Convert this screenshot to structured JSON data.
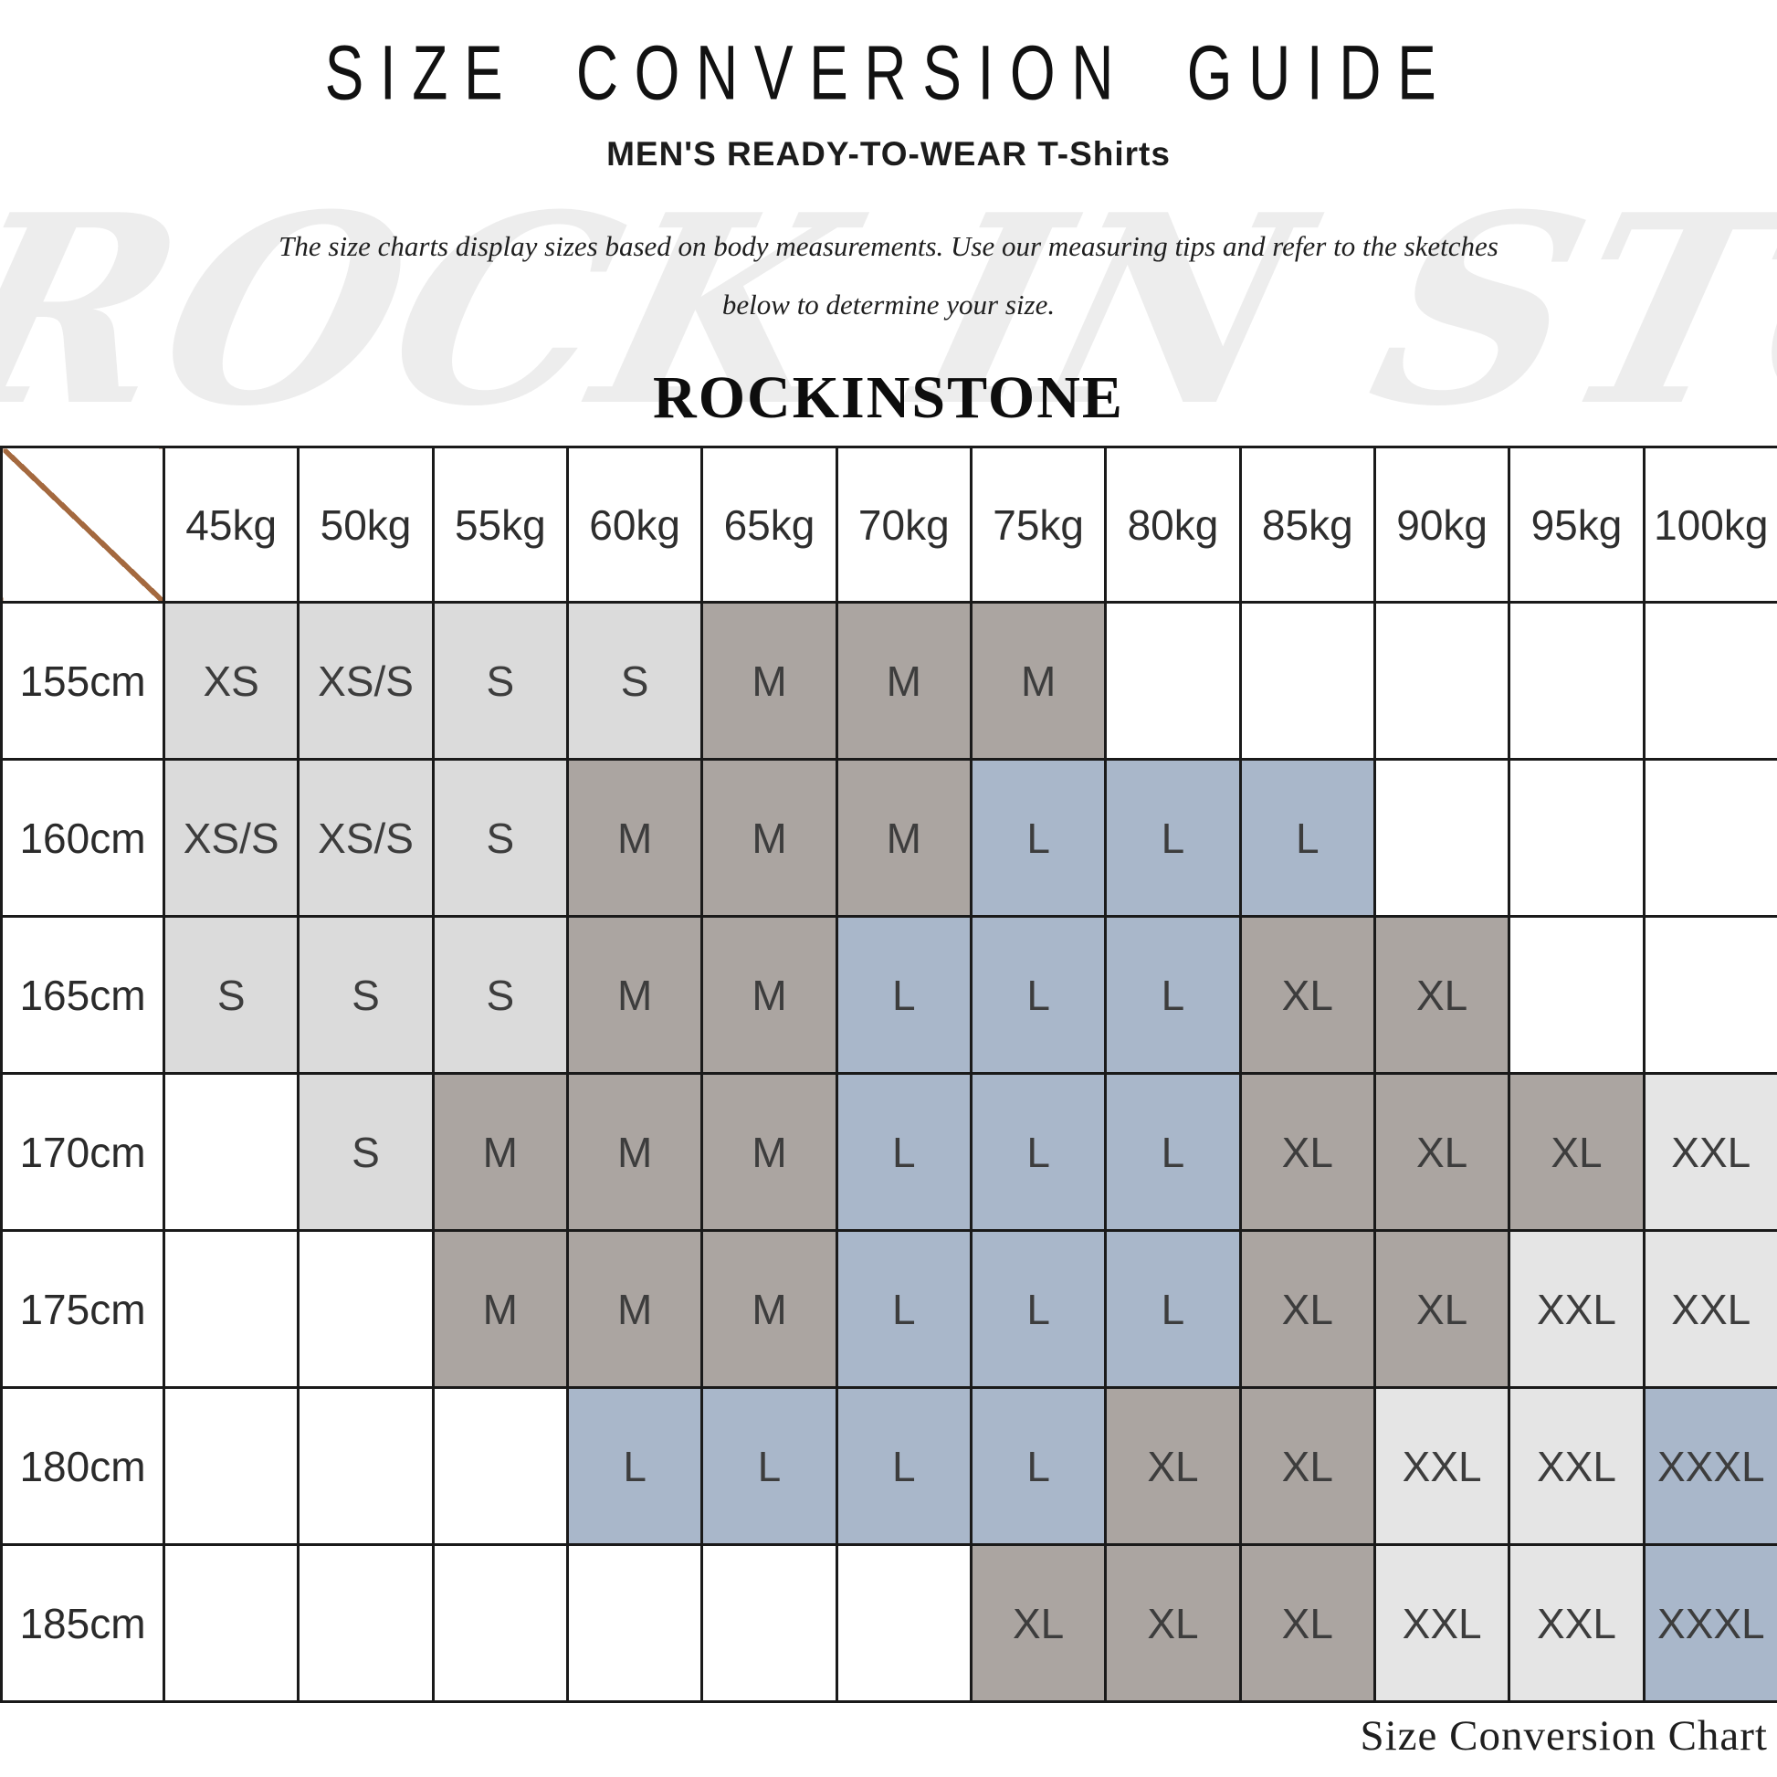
{
  "header": {
    "title": "SIZE CONVERSION GUIDE",
    "subtitle": "MEN'S READY-TO-WEAR T-Shirts",
    "description_lines": [
      "The size charts display sizes based on body measurements.  Use our measuring tips and refer to the sketches",
      "below to determine your size."
    ],
    "brand": "ROCKINSTONE",
    "watermark": "ROCK IN STONE"
  },
  "footer": {
    "caption": "Size Conversion Chart"
  },
  "colors": {
    "grid_border": "#1a1a1a",
    "diagonal_line": "#a4693f",
    "palette": {
      "lg": "#dbdbdb",
      "dk": "#aba5a1",
      "bl": "#a9b7ca",
      "xl": "#e5e5e5",
      "": "#ffffff"
    },
    "palette_legend": {
      "lg": "light gray (XS / XS-S / S cells)",
      "dk": "warm gray (M and XL cells)",
      "bl": "blue gray (L and XXXL cells)",
      "xl": "pale gray (XXL cells)",
      "": "white (empty cells)"
    }
  },
  "chart_data": {
    "type": "table",
    "title": "SIZE CONVERSION GUIDE",
    "columns": [
      "45kg",
      "50kg",
      "55kg",
      "60kg",
      "65kg",
      "70kg",
      "75kg",
      "80kg",
      "85kg",
      "90kg",
      "95kg",
      "100kg"
    ],
    "row_labels": [
      "155cm",
      "160cm",
      "165cm",
      "170cm",
      "175cm",
      "180cm",
      "185cm"
    ],
    "rows": [
      {
        "label": "155cm",
        "cells": [
          {
            "t": "XS",
            "c": "lg"
          },
          {
            "t": "XS/S",
            "c": "lg"
          },
          {
            "t": "S",
            "c": "lg"
          },
          {
            "t": "S",
            "c": "lg"
          },
          {
            "t": "M",
            "c": "dk"
          },
          {
            "t": "M",
            "c": "dk"
          },
          {
            "t": "M",
            "c": "dk"
          },
          {
            "t": "",
            "c": ""
          },
          {
            "t": "",
            "c": ""
          },
          {
            "t": "",
            "c": ""
          },
          {
            "t": "",
            "c": ""
          },
          {
            "t": "",
            "c": ""
          }
        ]
      },
      {
        "label": "160cm",
        "cells": [
          {
            "t": "XS/S",
            "c": "lg"
          },
          {
            "t": "XS/S",
            "c": "lg"
          },
          {
            "t": "S",
            "c": "lg"
          },
          {
            "t": "M",
            "c": "dk"
          },
          {
            "t": "M",
            "c": "dk"
          },
          {
            "t": "M",
            "c": "dk"
          },
          {
            "t": "L",
            "c": "bl"
          },
          {
            "t": "L",
            "c": "bl"
          },
          {
            "t": "L",
            "c": "bl"
          },
          {
            "t": "",
            "c": ""
          },
          {
            "t": "",
            "c": ""
          },
          {
            "t": "",
            "c": ""
          }
        ]
      },
      {
        "label": "165cm",
        "cells": [
          {
            "t": "S",
            "c": "lg"
          },
          {
            "t": "S",
            "c": "lg"
          },
          {
            "t": "S",
            "c": "lg"
          },
          {
            "t": "M",
            "c": "dk"
          },
          {
            "t": "M",
            "c": "dk"
          },
          {
            "t": "L",
            "c": "bl"
          },
          {
            "t": "L",
            "c": "bl"
          },
          {
            "t": "L",
            "c": "bl"
          },
          {
            "t": "XL",
            "c": "dk"
          },
          {
            "t": "XL",
            "c": "dk"
          },
          {
            "t": "",
            "c": ""
          },
          {
            "t": "",
            "c": ""
          }
        ]
      },
      {
        "label": "170cm",
        "cells": [
          {
            "t": "",
            "c": ""
          },
          {
            "t": "S",
            "c": "lg"
          },
          {
            "t": "M",
            "c": "dk"
          },
          {
            "t": "M",
            "c": "dk"
          },
          {
            "t": "M",
            "c": "dk"
          },
          {
            "t": "L",
            "c": "bl"
          },
          {
            "t": "L",
            "c": "bl"
          },
          {
            "t": "L",
            "c": "bl"
          },
          {
            "t": "XL",
            "c": "dk"
          },
          {
            "t": "XL",
            "c": "dk"
          },
          {
            "t": "XL",
            "c": "dk"
          },
          {
            "t": "XXL",
            "c": "xl"
          }
        ]
      },
      {
        "label": "175cm",
        "cells": [
          {
            "t": "",
            "c": ""
          },
          {
            "t": "",
            "c": ""
          },
          {
            "t": "M",
            "c": "dk"
          },
          {
            "t": "M",
            "c": "dk"
          },
          {
            "t": "M",
            "c": "dk"
          },
          {
            "t": "L",
            "c": "bl"
          },
          {
            "t": "L",
            "c": "bl"
          },
          {
            "t": "L",
            "c": "bl"
          },
          {
            "t": "XL",
            "c": "dk"
          },
          {
            "t": "XL",
            "c": "dk"
          },
          {
            "t": "XXL",
            "c": "xl"
          },
          {
            "t": "XXL",
            "c": "xl"
          }
        ]
      },
      {
        "label": "180cm",
        "cells": [
          {
            "t": "",
            "c": ""
          },
          {
            "t": "",
            "c": ""
          },
          {
            "t": "",
            "c": ""
          },
          {
            "t": "L",
            "c": "bl"
          },
          {
            "t": "L",
            "c": "bl"
          },
          {
            "t": "L",
            "c": "bl"
          },
          {
            "t": "L",
            "c": "bl"
          },
          {
            "t": "XL",
            "c": "dk"
          },
          {
            "t": "XL",
            "c": "dk"
          },
          {
            "t": "XXL",
            "c": "xl"
          },
          {
            "t": "XXL",
            "c": "xl"
          },
          {
            "t": "XXXL",
            "c": "bl"
          }
        ]
      },
      {
        "label": "185cm",
        "cells": [
          {
            "t": "",
            "c": ""
          },
          {
            "t": "",
            "c": ""
          },
          {
            "t": "",
            "c": ""
          },
          {
            "t": "",
            "c": ""
          },
          {
            "t": "",
            "c": ""
          },
          {
            "t": "",
            "c": ""
          },
          {
            "t": "XL",
            "c": "dk"
          },
          {
            "t": "XL",
            "c": "dk"
          },
          {
            "t": "XL",
            "c": "dk"
          },
          {
            "t": "XXL",
            "c": "xl"
          },
          {
            "t": "XXL",
            "c": "xl"
          },
          {
            "t": "XXXL",
            "c": "bl"
          }
        ]
      }
    ]
  }
}
